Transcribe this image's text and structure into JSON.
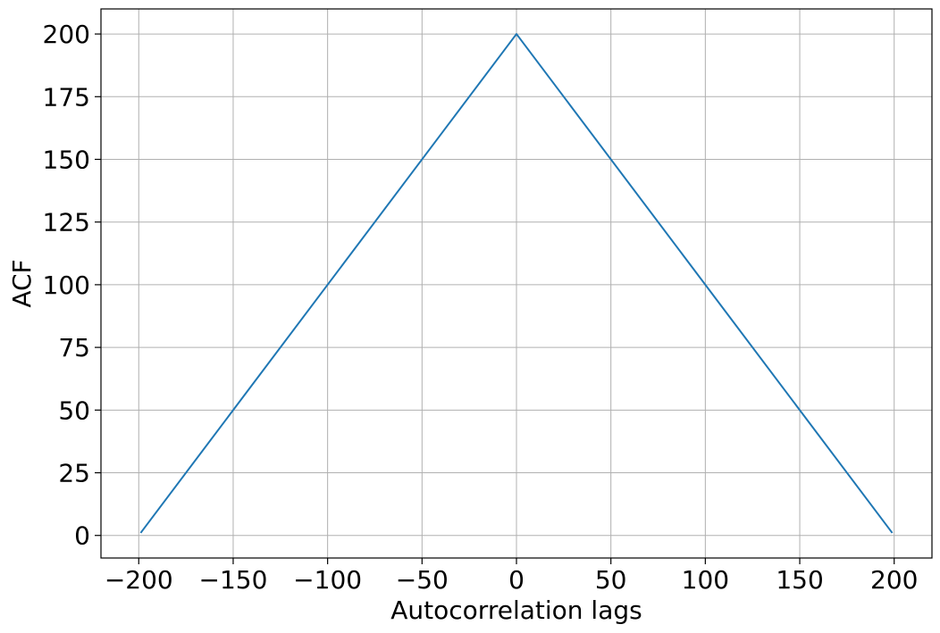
{
  "chart_data": {
    "type": "line",
    "title": "",
    "xlabel": "Autocorrelation lags",
    "ylabel": "ACF",
    "xlim": [
      -220,
      220
    ],
    "ylim": [
      -9,
      210
    ],
    "x_ticks": [
      -200,
      -150,
      -100,
      -50,
      0,
      50,
      100,
      150,
      200
    ],
    "x_tick_labels": [
      "−200",
      "−150",
      "−100",
      "−50",
      "0",
      "50",
      "100",
      "150",
      "200"
    ],
    "y_ticks": [
      0,
      25,
      50,
      75,
      100,
      125,
      150,
      175,
      200
    ],
    "y_tick_labels": [
      "0",
      "25",
      "50",
      "75",
      "100",
      "125",
      "150",
      "175",
      "200"
    ],
    "grid": true,
    "series": [
      {
        "color": "#1f77b4",
        "x": [
          -199,
          0,
          199
        ],
        "y": [
          1,
          200,
          1
        ]
      }
    ]
  }
}
